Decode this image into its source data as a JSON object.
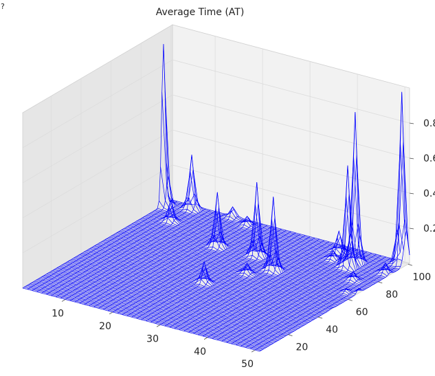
{
  "chart_data": {
    "type": "surface3d",
    "title": "Average Time (AT)",
    "corner_mark": "?",
    "xlabel": "",
    "ylabel": "",
    "zlabel": "",
    "x_ticks": [
      "10",
      "20",
      "30",
      "40",
      "50"
    ],
    "y_ticks": [
      "20",
      "40",
      "60",
      "80",
      "100"
    ],
    "z_ticks": [
      "0.2",
      "0.4",
      "0.6",
      "0.8"
    ],
    "xlim": [
      1,
      51
    ],
    "ylim": [
      1,
      101
    ],
    "zlim": [
      0,
      1
    ],
    "grid": true,
    "mesh_color": "#0000ff",
    "pane_color": "#f2f2f2",
    "grid_color": "#dcdcdc",
    "peaks": [
      {
        "x": 1,
        "y": 95,
        "z": 0.92
      },
      {
        "x": 6,
        "y": 98,
        "z": 0.31
      },
      {
        "x": 6,
        "y": 84,
        "z": 0.12
      },
      {
        "x": 14,
        "y": 100,
        "z": 0.06
      },
      {
        "x": 18,
        "y": 97,
        "z": 0.05
      },
      {
        "x": 19,
        "y": 74,
        "z": 0.31
      },
      {
        "x": 27,
        "y": 75,
        "z": 0.42
      },
      {
        "x": 26,
        "y": 43,
        "z": 0.12
      },
      {
        "x": 33,
        "y": 67,
        "z": 0.42
      },
      {
        "x": 30,
        "y": 59,
        "z": 0.06
      },
      {
        "x": 39,
        "y": 88,
        "z": 0.05
      },
      {
        "x": 38,
        "y": 95,
        "z": 0.12
      },
      {
        "x": 43,
        "y": 90,
        "z": 0.86
      },
      {
        "x": 43,
        "y": 85,
        "z": 0.58
      },
      {
        "x": 47,
        "y": 76,
        "z": 0.05
      },
      {
        "x": 50,
        "y": 88,
        "z": 0.06
      },
      {
        "x": 49,
        "y": 65,
        "z": 0.02
      },
      {
        "x": 50,
        "y": 99,
        "z": 0.98
      },
      {
        "x": 52,
        "y": 97,
        "z": 0.25
      },
      {
        "x": 52,
        "y": 67,
        "z": 0.14
      },
      {
        "x": 52,
        "y": 49,
        "z": 0.02
      }
    ]
  }
}
